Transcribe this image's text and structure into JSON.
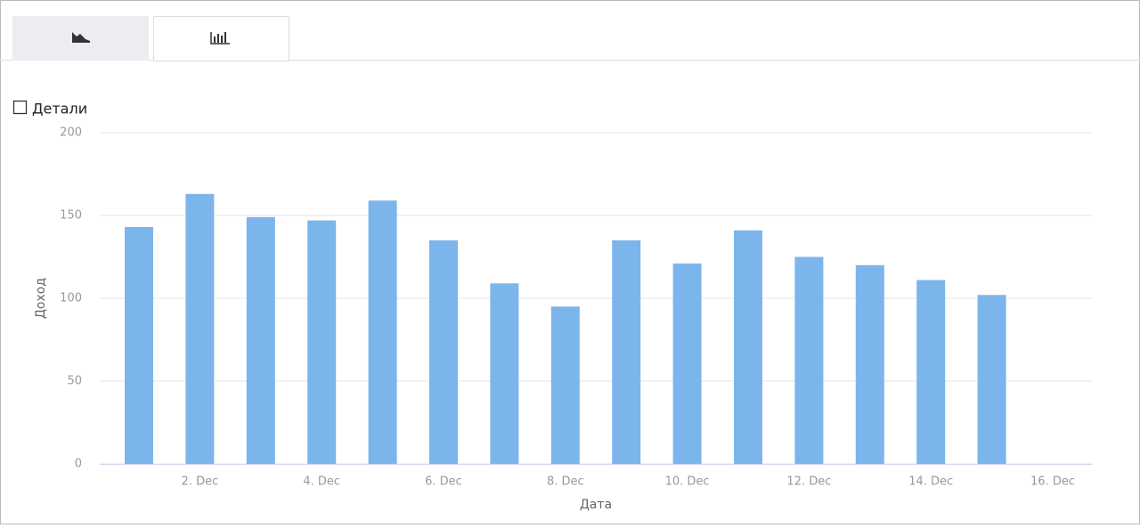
{
  "details_checkbox": {
    "label": "Детали",
    "checked": false
  },
  "chart_data": {
    "type": "bar",
    "y_label": "Доход",
    "x_label": "Дата",
    "categories": [
      null,
      "2. Dec",
      null,
      "4. Dec",
      null,
      "6. Dec",
      null,
      "8. Dec",
      null,
      "10. Dec",
      null,
      "12. Dec",
      null,
      "14. Dec",
      null,
      "16. Dec"
    ],
    "values": [
      143,
      163,
      149,
      147,
      159,
      135,
      109,
      95,
      135,
      121,
      141,
      125,
      120,
      111,
      102,
      null
    ],
    "color": "#7cb5ec",
    "ylim": [
      0,
      200
    ],
    "yticks": [
      0,
      50,
      100,
      150,
      200
    ],
    "grid": true
  }
}
